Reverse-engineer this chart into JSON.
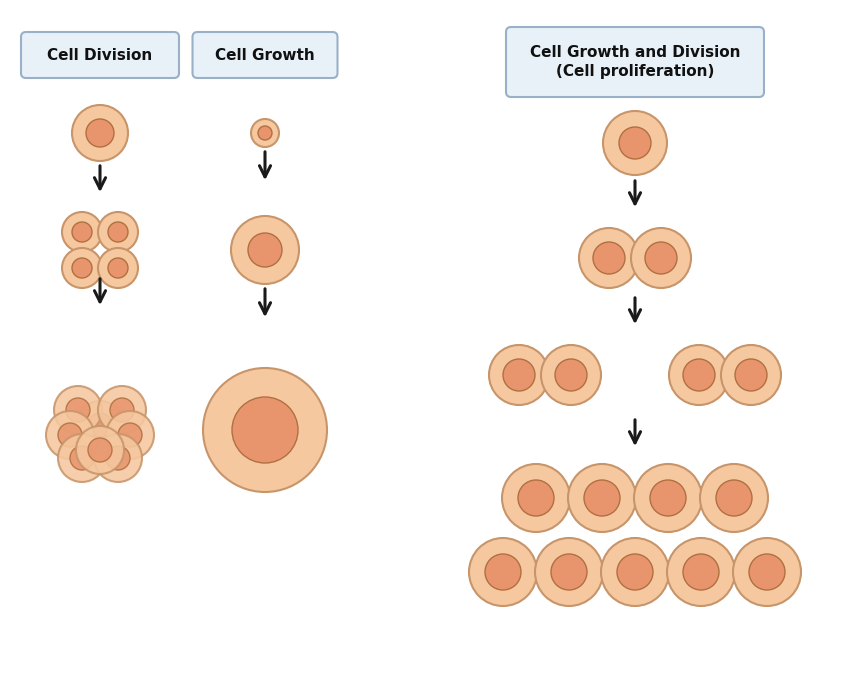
{
  "bg_color": "#ffffff",
  "cell_outer_color": "#f5c8a0",
  "cell_inner_color": "#e8956e",
  "cell_outer_edge": "#c8956a",
  "cell_inner_edge": "#b07040",
  "box_bg": "#e8f0f8",
  "box_edge": "#9ab0c8",
  "label1": "Cell Division",
  "label2": "Cell Growth",
  "label3": "Cell Growth and Division\n(Cell proliferation)",
  "arrow_color": "#1a1a1a",
  "figsize": [
    8.64,
    6.81
  ],
  "dpi": 100
}
